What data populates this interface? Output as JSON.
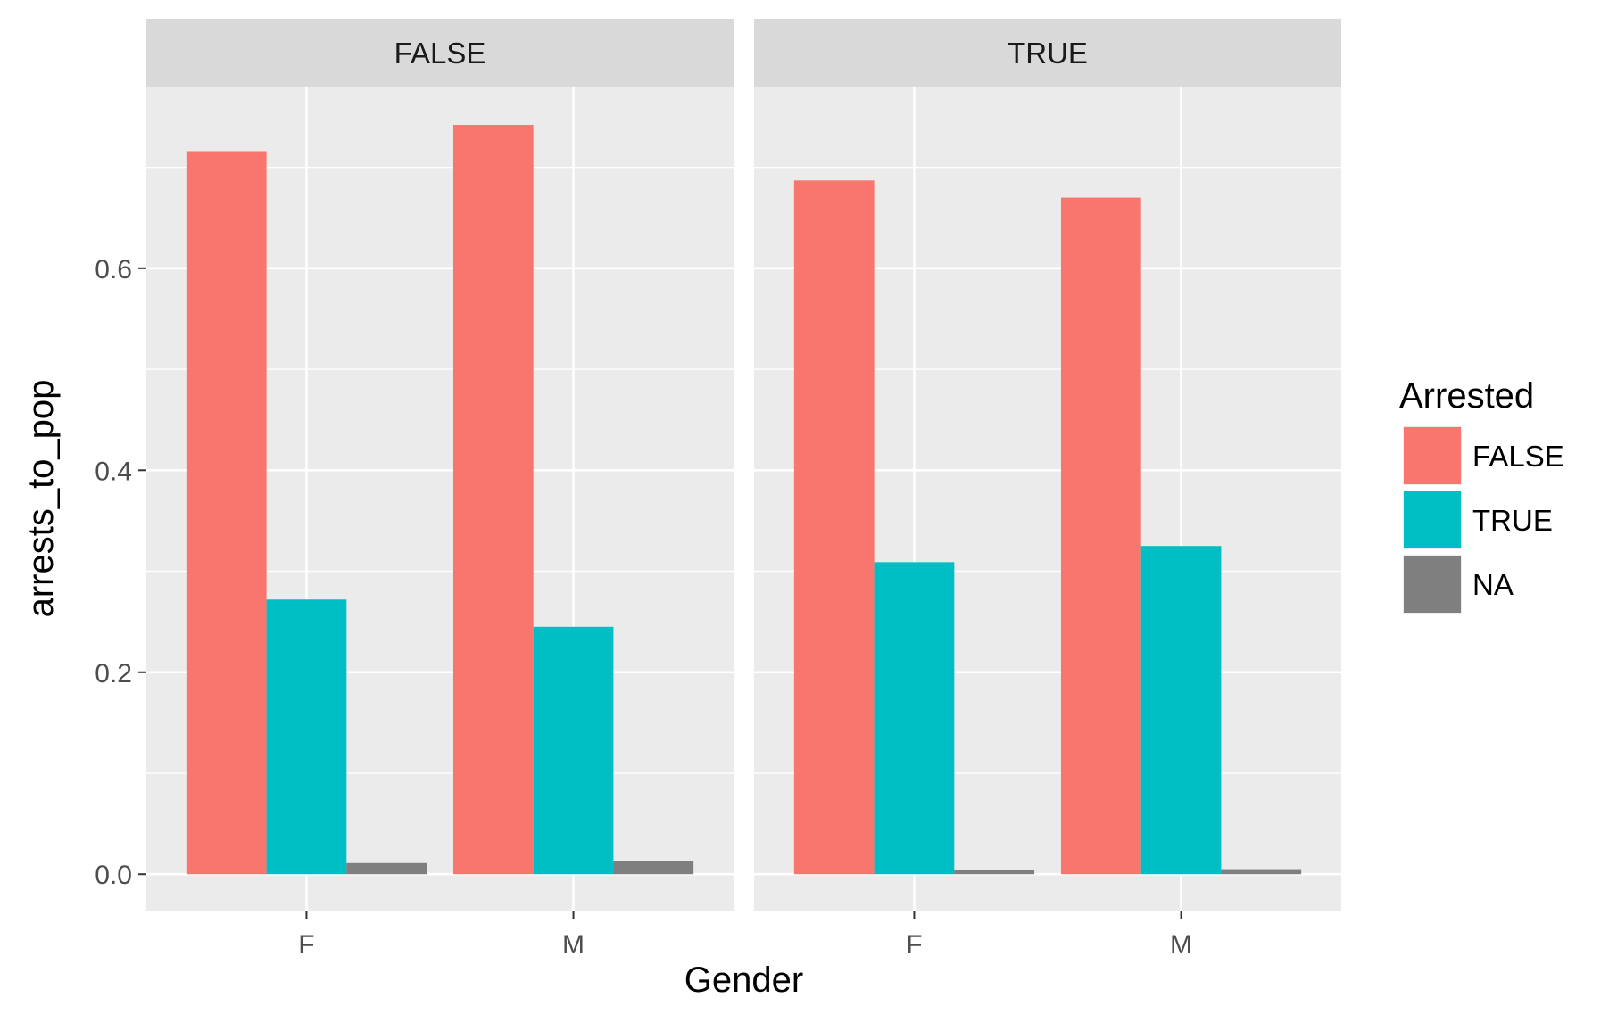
{
  "chart_data": {
    "type": "bar",
    "facet_by": "",
    "facets": [
      {
        "name": "FALSE",
        "categories": [
          "F",
          "M"
        ],
        "series": [
          {
            "name": "FALSE",
            "values": [
              0.716,
              0.742
            ]
          },
          {
            "name": "TRUE",
            "values": [
              0.272,
              0.245
            ]
          },
          {
            "name": "NA",
            "values": [
              0.011,
              0.013
            ]
          }
        ]
      },
      {
        "name": "TRUE",
        "categories": [
          "F",
          "M"
        ],
        "series": [
          {
            "name": "FALSE",
            "values": [
              0.687,
              0.67
            ]
          },
          {
            "name": "TRUE",
            "values": [
              0.309,
              0.325
            ]
          },
          {
            "name": "NA",
            "values": [
              0.004,
              0.005
            ]
          }
        ]
      }
    ],
    "xlabel": "Gender",
    "ylabel": "arrests_to_pop",
    "ylim": [
      -0.036,
      0.78
    ],
    "yticks": [
      0.0,
      0.2,
      0.4,
      0.6
    ],
    "ytick_labels": [
      "0.0",
      "0.2",
      "0.4",
      "0.6"
    ],
    "grid": true,
    "legend": {
      "title": "Arrested",
      "position": "right",
      "entries": [
        "FALSE",
        "TRUE",
        "NA"
      ]
    },
    "colors": {
      "FALSE": "#F8766D",
      "TRUE": "#00BFC4",
      "NA": "#7F7F7F",
      "panel_background": "#EBEBEB",
      "strip_background": "#D9D9D9",
      "grid": "#FFFFFF"
    }
  }
}
